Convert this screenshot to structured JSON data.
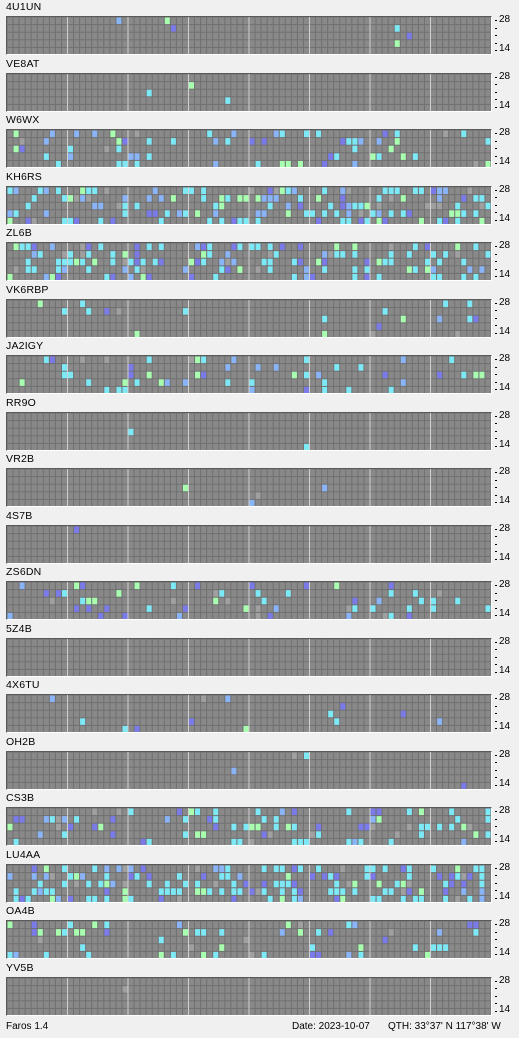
{
  "app": {
    "version_label": "Faros 1.4"
  },
  "footer": {
    "date_label": "Date: 2023-10-07",
    "qth_label": "QTH: 33°37' N  117°38' W"
  },
  "axis": {
    "top": "28",
    "bottom": "14"
  },
  "colors": {
    "grid_bg": "#707070",
    "cell": "#898989",
    "cyan": "#7de8f6",
    "blue": "#8ab4f8",
    "green": "#a8ffb0",
    "violet": "#7a7ae8",
    "lightgray": "#a0a0a0"
  },
  "stations": [
    {
      "call": "4U1UN"
    },
    {
      "call": "VE8AT"
    },
    {
      "call": "W6WX"
    },
    {
      "call": "KH6RS"
    },
    {
      "call": "ZL6B"
    },
    {
      "call": "VK6RBP"
    },
    {
      "call": "JA2IGY"
    },
    {
      "call": "RR9O"
    },
    {
      "call": "VR2B"
    },
    {
      "call": "4S7B"
    },
    {
      "call": "ZS6DN"
    },
    {
      "call": "5Z4B"
    },
    {
      "call": "4X6TU"
    },
    {
      "call": "OH2B"
    },
    {
      "call": "CS3B"
    },
    {
      "call": "LU4AA"
    },
    {
      "call": "OA4B"
    },
    {
      "call": "YV5B"
    }
  ]
}
